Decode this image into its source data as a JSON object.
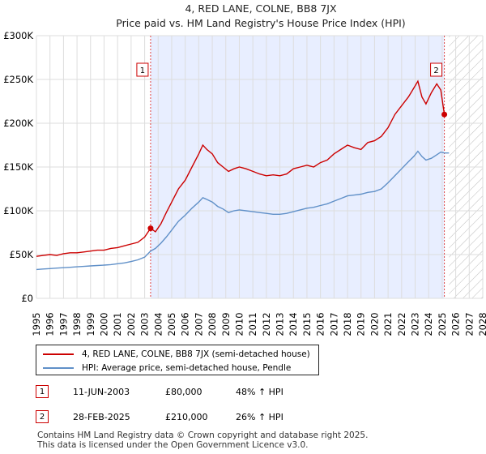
{
  "chart_data": {
    "type": "line",
    "title": "4, RED LANE, COLNE, BB8 7JX",
    "subtitle": "Price paid vs. HM Land Registry's House Price Index (HPI)",
    "ylim": [
      0,
      300000
    ],
    "xlim": [
      1995,
      2028
    ],
    "y_ticks": [
      0,
      50000,
      100000,
      150000,
      200000,
      250000,
      300000
    ],
    "y_tick_labels": [
      "£0",
      "£50K",
      "£100K",
      "£150K",
      "£200K",
      "£250K",
      "£300K"
    ],
    "x_ticks": [
      1995,
      1996,
      1997,
      1998,
      1999,
      2000,
      2001,
      2002,
      2003,
      2004,
      2005,
      2006,
      2007,
      2008,
      2009,
      2010,
      2011,
      2012,
      2013,
      2014,
      2015,
      2016,
      2017,
      2018,
      2019,
      2020,
      2021,
      2022,
      2023,
      2024,
      2025,
      2026,
      2027,
      2028
    ],
    "x_tick_labels": [
      "1995",
      "1996",
      "1997",
      "1998",
      "1999",
      "2000",
      "2001",
      "2002",
      "2003",
      "2004",
      "2005",
      "2006",
      "2007",
      "2008",
      "2009",
      "2010",
      "2011",
      "2012",
      "2013",
      "2014",
      "2015",
      "2016",
      "2017",
      "2018",
      "2019",
      "2020",
      "2021",
      "2022",
      "2023",
      "2024",
      "2025",
      "2026",
      "2027",
      "2028"
    ],
    "shaded_region": [
      2003.44,
      2025.16
    ],
    "hatched_from": 2025.5,
    "series": [
      {
        "name": "4, RED LANE, COLNE, BB8 7JX (semi-detached house)",
        "color": "#cc0000",
        "x": [
          1995.0,
          1995.5,
          1996.0,
          1996.5,
          1997.0,
          1997.5,
          1998.0,
          1998.5,
          1999.0,
          1999.5,
          2000.0,
          2000.5,
          2001.0,
          2001.5,
          2002.0,
          2002.5,
          2003.0,
          2003.44,
          2003.8,
          2004.2,
          2004.6,
          2005.0,
          2005.5,
          2006.0,
          2006.5,
          2007.0,
          2007.3,
          2007.6,
          2008.0,
          2008.4,
          2008.8,
          2009.2,
          2009.6,
          2010.0,
          2010.5,
          2011.0,
          2011.5,
          2012.0,
          2012.5,
          2013.0,
          2013.5,
          2014.0,
          2014.5,
          2015.0,
          2015.5,
          2016.0,
          2016.5,
          2017.0,
          2017.5,
          2018.0,
          2018.5,
          2019.0,
          2019.5,
          2020.0,
          2020.5,
          2021.0,
          2021.5,
          2022.0,
          2022.5,
          2022.9,
          2023.2,
          2023.5,
          2023.8,
          2024.2,
          2024.6,
          2024.9,
          2025.16
        ],
        "y": [
          48000,
          49000,
          50000,
          49000,
          51000,
          52000,
          52000,
          53000,
          54000,
          55000,
          55000,
          57000,
          58000,
          60000,
          62000,
          64000,
          70000,
          80000,
          76000,
          85000,
          98000,
          110000,
          125000,
          135000,
          150000,
          165000,
          175000,
          170000,
          165000,
          155000,
          150000,
          145000,
          148000,
          150000,
          148000,
          145000,
          142000,
          140000,
          141000,
          140000,
          142000,
          148000,
          150000,
          152000,
          150000,
          155000,
          158000,
          165000,
          170000,
          175000,
          172000,
          170000,
          178000,
          180000,
          185000,
          195000,
          210000,
          220000,
          230000,
          240000,
          248000,
          230000,
          222000,
          235000,
          245000,
          238000,
          210000
        ]
      },
      {
        "name": "HPI: Average price, semi-detached house, Pendle",
        "color": "#6090c8",
        "x": [
          1995.0,
          1995.5,
          1996.0,
          1996.5,
          1997.0,
          1997.5,
          1998.0,
          1998.5,
          1999.0,
          1999.5,
          2000.0,
          2000.5,
          2001.0,
          2001.5,
          2002.0,
          2002.5,
          2003.0,
          2003.44,
          2003.8,
          2004.2,
          2004.6,
          2005.0,
          2005.5,
          2006.0,
          2006.5,
          2007.0,
          2007.3,
          2007.6,
          2008.0,
          2008.4,
          2008.8,
          2009.2,
          2009.6,
          2010.0,
          2010.5,
          2011.0,
          2011.5,
          2012.0,
          2012.5,
          2013.0,
          2013.5,
          2014.0,
          2014.5,
          2015.0,
          2015.5,
          2016.0,
          2016.5,
          2017.0,
          2017.5,
          2018.0,
          2018.5,
          2019.0,
          2019.5,
          2020.0,
          2020.5,
          2021.0,
          2021.5,
          2022.0,
          2022.5,
          2022.9,
          2023.2,
          2023.5,
          2023.8,
          2024.2,
          2024.6,
          2024.9,
          2025.16,
          2025.5
        ],
        "y": [
          33000,
          33500,
          34000,
          34500,
          35000,
          35500,
          36000,
          36500,
          37000,
          37500,
          38000,
          38500,
          39500,
          40500,
          42000,
          44000,
          47000,
          54000,
          57000,
          63000,
          70000,
          78000,
          88000,
          95000,
          103000,
          110000,
          115000,
          113000,
          110000,
          105000,
          102000,
          98000,
          100000,
          101000,
          100000,
          99000,
          98000,
          97000,
          96000,
          96000,
          97000,
          99000,
          101000,
          103000,
          104000,
          106000,
          108000,
          111000,
          114000,
          117000,
          118000,
          119000,
          121000,
          122000,
          125000,
          132000,
          140000,
          148000,
          156000,
          162000,
          168000,
          162000,
          158000,
          160000,
          164000,
          167000,
          166000,
          166000
        ]
      }
    ],
    "annotations": [
      {
        "label": "1",
        "x": 2003.44,
        "y": 80000
      },
      {
        "label": "2",
        "x": 2025.16,
        "y": 210000
      }
    ]
  },
  "legend": {
    "price_paid_label": "4, RED LANE, COLNE, BB8 7JX (semi-detached house)",
    "hpi_label": "HPI: Average price, semi-detached house, Pendle"
  },
  "annotation_table": [
    {
      "num": "1",
      "date": "11-JUN-2003",
      "price": "£80,000",
      "hpi": "48% ↑ HPI"
    },
    {
      "num": "2",
      "date": "28-FEB-2025",
      "price": "£210,000",
      "hpi": "26% ↑ HPI"
    }
  ],
  "footer": {
    "line1": "Contains HM Land Registry data © Crown copyright and database right 2025.",
    "line2": "This data is licensed under the Open Government Licence v3.0."
  },
  "colors": {
    "price_line": "#cc0000",
    "hpi_line": "#6090c8",
    "shade": "#e8eeff",
    "grid": "#dddddd"
  }
}
